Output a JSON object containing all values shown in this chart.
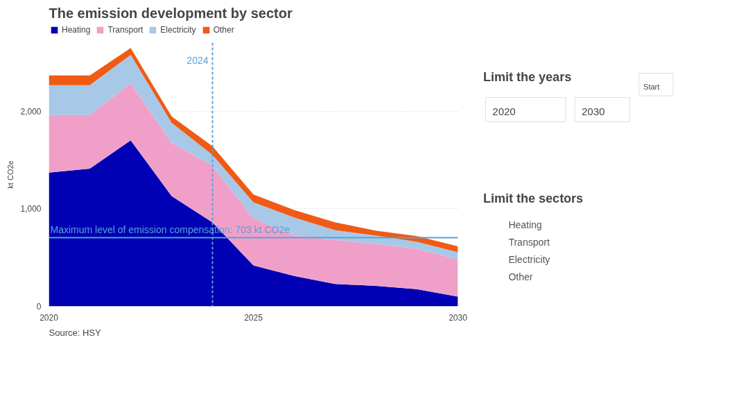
{
  "chart_data": [
    {
      "type": "area",
      "stacked": true,
      "title": "The emission development by sector",
      "ylabel": "kt CO2e",
      "x": [
        2020,
        2021,
        2022,
        2023,
        2024,
        2025,
        2026,
        2027,
        2028,
        2029,
        2030
      ],
      "series": [
        {
          "name": "Heating",
          "color": "#0000b4",
          "values": [
            1370,
            1410,
            1700,
            1130,
            860,
            420,
            310,
            230,
            210,
            175,
            100
          ]
        },
        {
          "name": "Transport",
          "color": "#f0a0c8",
          "values": [
            590,
            550,
            585,
            545,
            580,
            480,
            415,
            450,
            430,
            415,
            380
          ]
        },
        {
          "name": "Electricity",
          "color": "#a8c8e8",
          "values": [
            305,
            305,
            290,
            205,
            110,
            165,
            185,
            100,
            85,
            70,
            75
          ]
        },
        {
          "name": "Other",
          "color": "#f05a14",
          "values": [
            100,
            100,
            70,
            65,
            90,
            80,
            75,
            80,
            50,
            60,
            60
          ]
        }
      ],
      "xlim": [
        2020,
        2030
      ],
      "xticks": [
        2020,
        2025,
        2030
      ],
      "ylim": [
        0,
        2700
      ],
      "yticks": [
        0,
        {
          "value": 1000,
          "label": "1,000"
        },
        {
          "value": 2000,
          "label": "2,000"
        }
      ],
      "grid": "y",
      "legend": "top",
      "ref_lines": [
        {
          "axis": "x",
          "value": 2024,
          "label": "2024",
          "color": "#5aa0d8",
          "line_style": "dashed"
        },
        {
          "axis": "y",
          "value": 703,
          "label": "Maximum level of emission compensation: 703 kt CO2e",
          "color": "#5aa0d8",
          "line_style": "solid"
        }
      ],
      "annotations": [
        "Source: HSY"
      ]
    },
    {
      "type": "other",
      "title": "Limit the years",
      "annotations": [
        "2020",
        "2030",
        "Start",
        "Limit the sectors",
        "Heating",
        "Transport",
        "Electricity",
        "Other"
      ]
    }
  ]
}
